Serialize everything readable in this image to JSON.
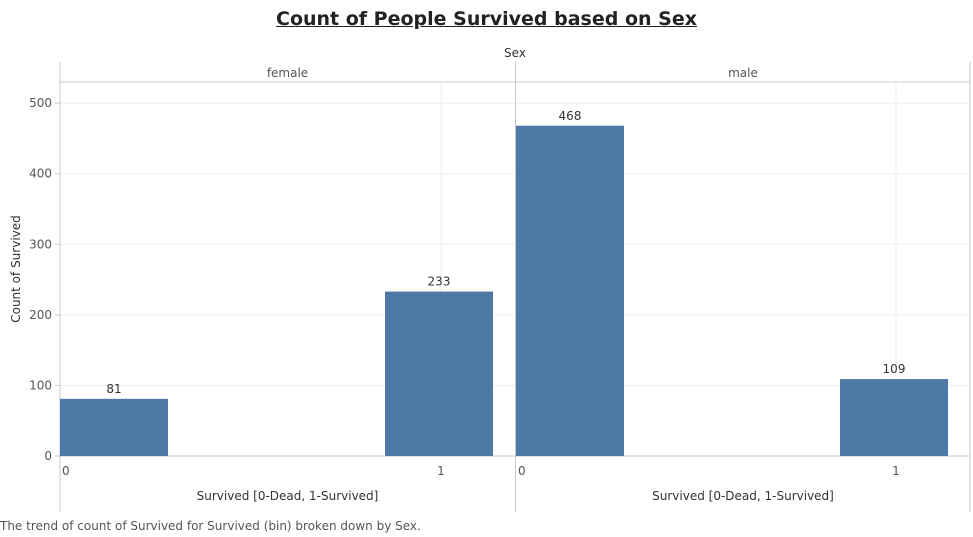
{
  "title": "Count of People Survived based on Sex",
  "caption": "The trend of count of Survived for Survived (bin) broken down by Sex.",
  "colors": {
    "bar": "#4e79a7",
    "grid": "#eeeeee",
    "axis": "#c8c8c8",
    "text": "#555555"
  },
  "chart_data": {
    "type": "bar",
    "title": "Count of People Survived based on Sex",
    "column_header": "Sex",
    "ylabel": "Count of Survived",
    "xlabel": "Survived  [0-Dead, 1-Survived]",
    "ylim": [
      0,
      530
    ],
    "yticks": [
      0,
      100,
      200,
      300,
      400,
      500
    ],
    "grid": true,
    "panels": [
      {
        "name": "female",
        "categories": [
          "0",
          "1"
        ],
        "values": [
          81,
          233
        ]
      },
      {
        "name": "male",
        "categories": [
          "0",
          "1"
        ],
        "values": [
          468,
          109
        ]
      }
    ]
  }
}
